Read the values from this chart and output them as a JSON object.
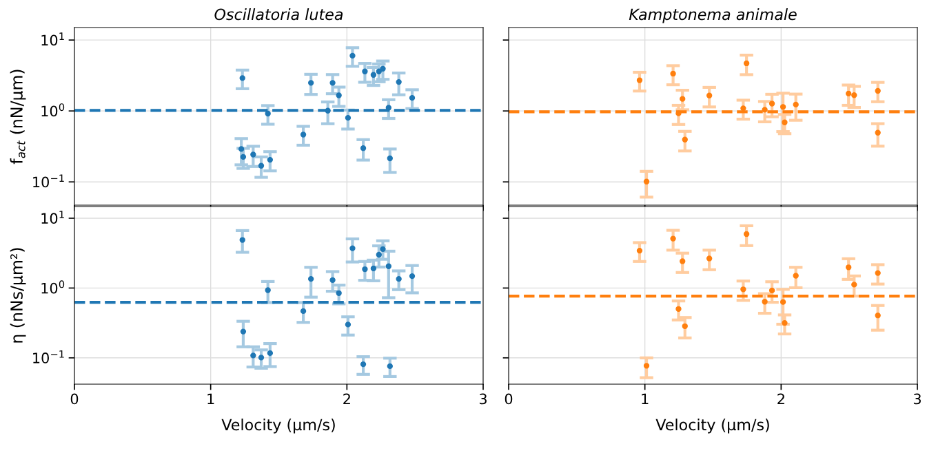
{
  "chart_data": [
    {
      "type": "scatter",
      "title": "Oscillatoria lutea",
      "ylabel": "f$_{act}$ (nN/μm)",
      "xlim": [
        0,
        3
      ],
      "xticks": [
        0,
        1,
        2,
        3
      ],
      "ylim": [
        0.047,
        15
      ],
      "yticks": [
        {
          "value": 0.1,
          "label": "10$^{−1}$"
        },
        {
          "value": 1,
          "label": "10$^{0}$"
        },
        {
          "value": 10,
          "label": "10$^{1}$"
        }
      ],
      "log": "y",
      "grid": true,
      "marker": "circle",
      "tick_labels": "y",
      "series": [
        {
          "color": "#1f77b4",
          "x": [
            1.233,
            1.225,
            1.239,
            1.312,
            1.371,
            1.436,
            1.42,
            1.68,
            1.736,
            1.86,
            1.895,
            1.941,
            2.008,
            2.041,
            2.132,
            2.195,
            2.235,
            2.264,
            2.12,
            2.306,
            2.316,
            2.381,
            2.479
          ],
          "values": [
            2.91,
            0.291,
            0.225,
            0.243,
            0.169,
            0.205,
            0.918,
            0.464,
            2.49,
            1.01,
            2.49,
            1.66,
            0.8,
            6.01,
            3.61,
            3.23,
            3.61,
            3.94,
            0.299,
            1.11,
            0.215,
            2.56,
            1.53
          ],
          "errors": [
            [
              2.06,
              3.77
            ],
            [
              0.174,
              0.408
            ],
            [
              0.155,
              0.297
            ],
            [
              0.165,
              0.318
            ],
            [
              0.116,
              0.225
            ],
            [
              0.143,
              0.267
            ],
            [
              0.65,
              1.19
            ],
            [
              0.329,
              0.607
            ],
            [
              1.71,
              3.29
            ],
            [
              0.661,
              1.34
            ],
            [
              1.75,
              3.26
            ],
            [
              1.16,
              2.17
            ],
            [
              0.556,
              1.03
            ],
            [
              4.26,
              7.79
            ],
            [
              2.54,
              4.68
            ],
            [
              2.29,
              4.11
            ],
            [
              2.58,
              4.6
            ],
            [
              2.79,
              5.06
            ],
            [
              0.203,
              0.394
            ],
            [
              0.785,
              1.44
            ],
            [
              0.136,
              0.291
            ],
            [
              1.69,
              3.43
            ],
            [
              1.08,
              1.99
            ]
          ]
        }
      ],
      "ref_lines": [
        {
          "axis": "y",
          "value": 1.02,
          "color": "#1f77b4",
          "line_style": "dashed"
        }
      ]
    },
    {
      "type": "scatter",
      "title": "Kamptonema animale",
      "xlim": [
        0,
        3
      ],
      "xticks": [
        0,
        1,
        2,
        3
      ],
      "ylim": [
        0.047,
        15
      ],
      "yticks": [
        {
          "value": 0.1,
          "label": null
        },
        {
          "value": 1,
          "label": null
        },
        {
          "value": 10,
          "label": null
        }
      ],
      "log": "y",
      "grid": true,
      "marker": "circle",
      "tick_labels": false,
      "series": [
        {
          "color": "#ff7f0e",
          "x": [
            0.961,
            1.012,
            1.207,
            1.247,
            1.276,
            1.294,
            1.473,
            1.722,
            1.746,
            1.88,
            1.933,
            2.014,
            2.026,
            2.108,
            2.495,
            2.536,
            2.71,
            2.71
          ],
          "values": [
            2.71,
            0.101,
            3.36,
            0.925,
            1.48,
            0.395,
            1.65,
            1.09,
            4.7,
            1.04,
            1.27,
            1.14,
            0.691,
            1.23,
            1.76,
            1.67,
            1.92,
            0.494
          ],
          "errors": [
            [
              1.91,
              3.51
            ],
            [
              0.061,
              0.141
            ],
            [
              2.34,
              4.35
            ],
            [
              0.645,
              1.2
            ],
            [
              1.04,
              1.96
            ],
            [
              0.273,
              0.516
            ],
            [
              1.14,
              2.15
            ],
            [
              0.766,
              1.42
            ],
            [
              3.25,
              6.12
            ],
            [
              0.703,
              1.36
            ],
            [
              0.828,
              1.72
            ],
            [
              0.512,
              1.78
            ],
            [
              0.478,
              0.894
            ],
            [
              0.74,
              1.73
            ],
            [
              1.2,
              2.32
            ],
            [
              1.12,
              2.22
            ],
            [
              1.35,
              2.53
            ],
            [
              0.319,
              0.662
            ]
          ]
        }
      ],
      "ref_lines": [
        {
          "axis": "y",
          "value": 0.975,
          "color": "#ff7f0e",
          "line_style": "dashed"
        }
      ]
    },
    {
      "type": "scatter",
      "xlabel": "Velocity (μm/s)",
      "ylabel": "η (nNs/μm²)",
      "xlim": [
        0,
        3
      ],
      "xticks": [
        0,
        1,
        2,
        3
      ],
      "ylim": [
        0.042,
        14.7
      ],
      "yticks": [
        {
          "value": 0.1,
          "label": "10$^{−1}$"
        },
        {
          "value": 1,
          "label": "10$^{0}$"
        },
        {
          "value": 10,
          "label": "10$^{1}$"
        }
      ],
      "log": "y",
      "grid": true,
      "marker": "circle",
      "series": [
        {
          "color": "#1f77b4",
          "x": [
            1.233,
            1.239,
            1.312,
            1.371,
            1.436,
            1.42,
            1.68,
            1.736,
            1.895,
            1.941,
            2.008,
            2.041,
            2.132,
            2.195,
            2.235,
            2.264,
            2.306,
            2.12,
            2.316,
            2.381,
            2.479
          ],
          "values": [
            4.88,
            0.238,
            0.108,
            0.101,
            0.117,
            0.932,
            0.467,
            1.35,
            1.3,
            0.845,
            0.3,
            3.71,
            1.86,
            1.91,
            3.0,
            3.61,
            2.05,
            0.081,
            0.076,
            1.35,
            1.48
          ],
          "errors": [
            [
              3.25,
              6.65
            ],
            [
              0.144,
              0.334
            ],
            [
              0.074,
              0.144
            ],
            [
              0.071,
              0.13
            ],
            [
              0.075,
              0.16
            ],
            [
              0.62,
              1.24
            ],
            [
              0.322,
              0.62
            ],
            [
              0.74,
              1.98
            ],
            [
              0.9,
              1.72
            ],
            [
              0.593,
              1.1
            ],
            [
              0.212,
              0.387
            ],
            [
              2.36,
              5.06
            ],
            [
              1.29,
              2.4
            ],
            [
              1.27,
              2.51
            ],
            [
              2.0,
              4.02
            ],
            [
              2.58,
              4.75
            ],
            [
              0.727,
              3.37
            ],
            [
              0.058,
              0.104
            ],
            [
              0.054,
              0.099
            ],
            [
              0.948,
              1.76
            ],
            [
              0.853,
              2.1
            ]
          ]
        }
      ],
      "ref_lines": [
        {
          "axis": "y",
          "value": 0.625,
          "color": "#1f77b4",
          "line_style": "dashed"
        }
      ]
    },
    {
      "type": "scatter",
      "xlabel": "Velocity (μm/s)",
      "xlim": [
        0,
        3
      ],
      "xticks": [
        0,
        1,
        2,
        3
      ],
      "ylim": [
        0.042,
        14.7
      ],
      "yticks": [
        {
          "value": 0.1,
          "label": null
        },
        {
          "value": 1,
          "label": null
        },
        {
          "value": 10,
          "label": null
        }
      ],
      "log": "y",
      "grid": true,
      "marker": "circle",
      "tick_labels": "x",
      "series": [
        {
          "color": "#ff7f0e",
          "x": [
            0.961,
            1.012,
            1.207,
            1.276,
            1.247,
            1.294,
            1.473,
            1.722,
            1.746,
            1.88,
            1.933,
            2.014,
            2.026,
            2.108,
            2.495,
            2.536,
            2.71,
            2.71
          ],
          "values": [
            3.43,
            0.077,
            5.1,
            2.42,
            0.501,
            0.284,
            2.65,
            0.957,
            5.93,
            0.637,
            0.923,
            0.631,
            0.316,
            1.5,
            1.98,
            1.12,
            1.64,
            0.405
          ],
          "errors": [
            [
              2.4,
              4.47
            ],
            [
              0.052,
              0.1
            ],
            [
              3.49,
              6.71
            ],
            [
              1.67,
              3.16
            ],
            [
              0.349,
              0.653
            ],
            [
              0.193,
              0.378
            ],
            [
              1.83,
              3.49
            ],
            [
              0.665,
              1.26
            ],
            [
              4.05,
              7.8
            ],
            [
              0.435,
              0.83
            ],
            [
              0.625,
              1.23
            ],
            [
              0.303,
              0.957
            ],
            [
              0.22,
              0.412
            ],
            [
              1.01,
              1.98
            ],
            [
              1.33,
              2.63
            ],
            [
              0.767,
              1.49
            ],
            [
              1.14,
              2.16
            ],
            [
              0.249,
              0.562
            ]
          ]
        }
      ],
      "ref_lines": [
        {
          "axis": "y",
          "value": 0.767,
          "color": "#ff7f0e",
          "line_style": "dashed"
        }
      ]
    }
  ]
}
